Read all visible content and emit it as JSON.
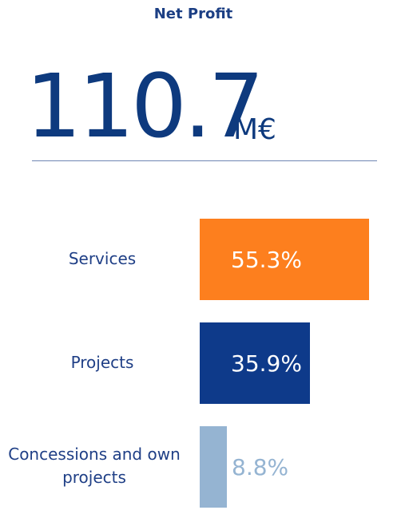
{
  "header": {
    "title": "Net Profit",
    "value": "110.7",
    "unit": "M€"
  },
  "colors": {
    "services": "#fd7f1e",
    "projects": "#0e3a8a",
    "concessions": "#95b4d2",
    "text": "#1f3f86"
  },
  "chart_data": {
    "type": "bar",
    "orientation": "horizontal",
    "title": "Net Profit",
    "total": {
      "value": 110.7,
      "unit": "M€"
    },
    "categories": [
      "Services",
      "Projects",
      "Concessions and own projects"
    ],
    "values": [
      55.3,
      35.9,
      8.8
    ],
    "value_labels": [
      "55.3%",
      "35.9%",
      "8.8%"
    ],
    "unit": "%",
    "grid": false,
    "legend": "none"
  }
}
